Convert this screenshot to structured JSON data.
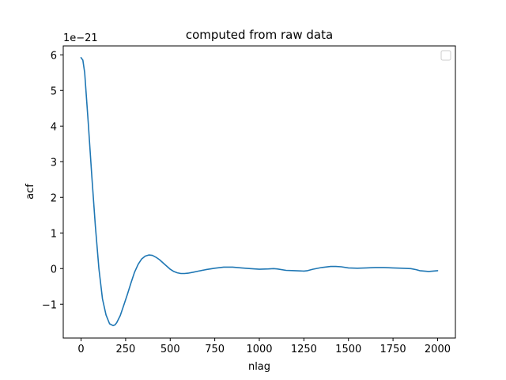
{
  "chart_data": {
    "type": "line",
    "title": "computed from raw data",
    "xlabel": "nlag",
    "ylabel": "acf",
    "offset_text": "1e−21",
    "xlim": [
      -100,
      2100
    ],
    "ylim": [
      -1.95,
      6.25
    ],
    "xticks": [
      0,
      250,
      500,
      750,
      1000,
      1250,
      1500,
      1750,
      2000
    ],
    "xtick_labels": [
      "0",
      "250",
      "500",
      "750",
      "1000",
      "1250",
      "1500",
      "1750",
      "2000"
    ],
    "yticks": [
      -1,
      0,
      1,
      2,
      3,
      4,
      5,
      6
    ],
    "ytick_labels": [
      "−1",
      "0",
      "1",
      "2",
      "3",
      "4",
      "5",
      "6"
    ],
    "grid": false,
    "legend": "top-right",
    "series": [
      {
        "color": "#1f77b4",
        "x": [
          0,
          10,
          20,
          40,
          60,
          80,
          100,
          120,
          140,
          160,
          180,
          190,
          200,
          220,
          240,
          260,
          280,
          300,
          320,
          340,
          360,
          380,
          400,
          420,
          440,
          460,
          480,
          500,
          520,
          540,
          560,
          580,
          600,
          630,
          660,
          700,
          750,
          800,
          850,
          900,
          950,
          1000,
          1050,
          1080,
          1100,
          1150,
          1200,
          1250,
          1270,
          1300,
          1350,
          1400,
          1430,
          1460,
          1500,
          1550,
          1600,
          1650,
          1700,
          1750,
          1800,
          1850,
          1880,
          1900,
          1950,
          2000
        ],
        "values": [
          5.92,
          5.85,
          5.5,
          4.1,
          2.6,
          1.2,
          0.0,
          -0.85,
          -1.3,
          -1.55,
          -1.6,
          -1.58,
          -1.52,
          -1.32,
          -1.02,
          -0.72,
          -0.4,
          -0.1,
          0.12,
          0.27,
          0.35,
          0.38,
          0.37,
          0.32,
          0.25,
          0.16,
          0.07,
          -0.02,
          -0.08,
          -0.12,
          -0.14,
          -0.14,
          -0.13,
          -0.1,
          -0.07,
          -0.03,
          0.01,
          0.04,
          0.04,
          0.02,
          0.0,
          -0.02,
          -0.01,
          0.0,
          -0.01,
          -0.05,
          -0.06,
          -0.07,
          -0.06,
          -0.02,
          0.03,
          0.06,
          0.06,
          0.05,
          0.02,
          0.01,
          0.02,
          0.03,
          0.03,
          0.02,
          0.01,
          0.0,
          -0.03,
          -0.06,
          -0.08,
          -0.06
        ]
      }
    ]
  }
}
